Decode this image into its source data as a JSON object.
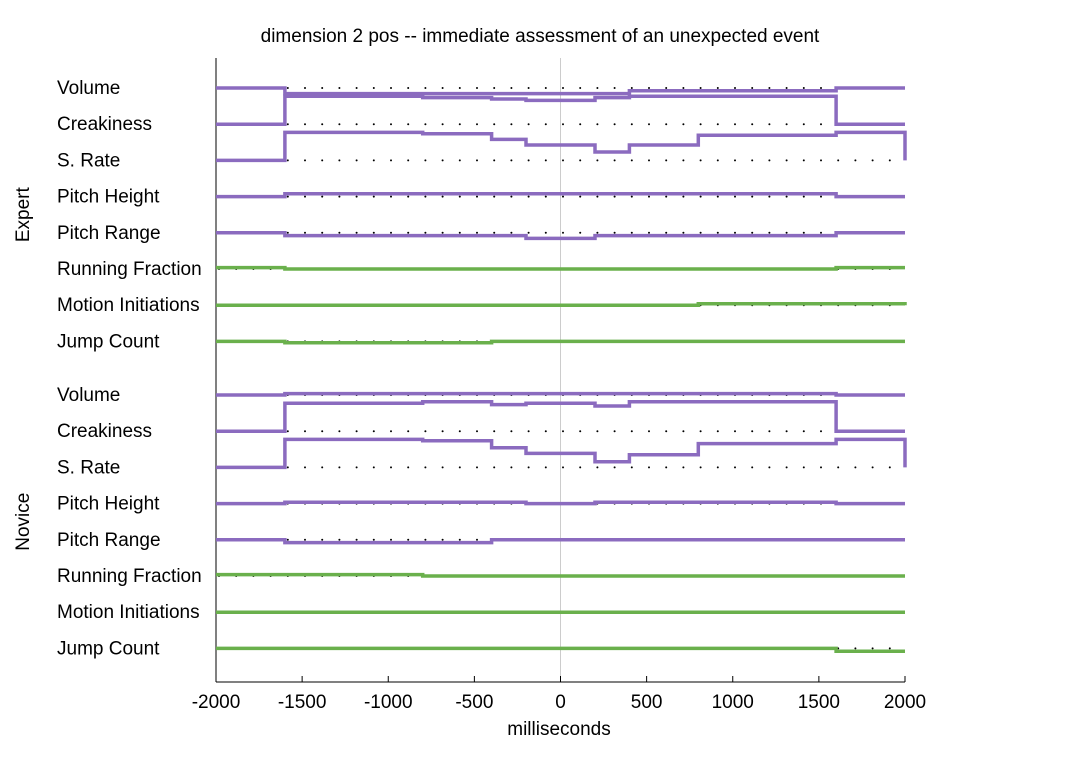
{
  "chart_data": {
    "type": "line",
    "title": "dimension 2 pos -- immediate assessment of an unexpected event",
    "xlabel": "milliseconds",
    "xlim": [
      -2000,
      2000
    ],
    "xticks": [
      -2000,
      -1500,
      -1000,
      -500,
      0,
      500,
      1000,
      1500,
      2000
    ],
    "xtick_labels": [
      "-2000",
      "-1500",
      "-1000",
      "-500",
      "0",
      "500",
      "1000",
      "1500",
      "2000"
    ],
    "segment_edges": [
      -2000,
      -1600,
      -800,
      -400,
      -200,
      200,
      400,
      800,
      1600,
      2000
    ],
    "zero_line": 0,
    "colors": {
      "prosodic": "#8b6bbf",
      "motion": "#6ab04c",
      "baseline_dots": "#000000",
      "zero_line": "#cccccc",
      "axis": "#000000"
    },
    "groups": [
      {
        "name": "Expert",
        "series": [
          {
            "name": "Volume",
            "kind": "prosodic",
            "values": [
              0,
              -0.2,
              -0.2,
              -0.2,
              -0.2,
              -0.2,
              -0.1,
              -0.1,
              0,
              0
            ]
          },
          {
            "name": "Creakiness",
            "kind": "prosodic",
            "values": [
              0,
              1.0,
              0.95,
              0.9,
              0.85,
              0.95,
              1.0,
              1.0,
              0,
              0
            ]
          },
          {
            "name": "S. Rate",
            "kind": "prosodic",
            "values": [
              0,
              1.0,
              0.95,
              0.75,
              0.55,
              0.3,
              0.55,
              0.9,
              1.0,
              0
            ]
          },
          {
            "name": "Pitch Height",
            "kind": "prosodic",
            "values": [
              0,
              0.1,
              0.1,
              0.1,
              0.1,
              0.1,
              0.1,
              0.1,
              0,
              0
            ]
          },
          {
            "name": "Pitch Range",
            "kind": "prosodic",
            "values": [
              0,
              -0.1,
              -0.1,
              -0.1,
              -0.2,
              -0.1,
              -0.1,
              -0.1,
              0,
              0
            ]
          },
          {
            "name": "Running Fraction",
            "kind": "motion",
            "values": [
              0.05,
              0,
              0,
              0,
              0,
              0,
              0,
              0,
              0.05,
              0.05
            ]
          },
          {
            "name": "Motion Initiations",
            "kind": "motion",
            "values": [
              0,
              0,
              0,
              0,
              0,
              0,
              0,
              0.05,
              0.05,
              0
            ]
          },
          {
            "name": "Jump Count",
            "kind": "motion",
            "values": [
              0,
              -0.05,
              -0.05,
              0,
              0,
              0,
              0,
              0,
              0,
              0
            ]
          }
        ]
      },
      {
        "name": "Novice",
        "series": [
          {
            "name": "Volume",
            "kind": "prosodic",
            "values": [
              0,
              0.05,
              0.05,
              0.05,
              0.05,
              0.05,
              0.05,
              0.05,
              0,
              0
            ]
          },
          {
            "name": "Creakiness",
            "kind": "prosodic",
            "values": [
              0,
              1.0,
              1.05,
              0.95,
              1.0,
              0.9,
              1.05,
              1.05,
              0,
              0
            ]
          },
          {
            "name": "S. Rate",
            "kind": "prosodic",
            "values": [
              0,
              1.0,
              0.95,
              0.7,
              0.5,
              0.2,
              0.45,
              0.85,
              1.0,
              0
            ]
          },
          {
            "name": "Pitch Height",
            "kind": "prosodic",
            "values": [
              0,
              0.05,
              0.05,
              0.05,
              0,
              0.05,
              0.05,
              0.05,
              0,
              0
            ]
          },
          {
            "name": "Pitch Range",
            "kind": "prosodic",
            "values": [
              0,
              -0.1,
              -0.1,
              0,
              0,
              0,
              0,
              0,
              0,
              0
            ]
          },
          {
            "name": "Running Fraction",
            "kind": "motion",
            "values": [
              0.05,
              0.05,
              0,
              0,
              0,
              0,
              0,
              0,
              0,
              0
            ]
          },
          {
            "name": "Motion Initiations",
            "kind": "motion",
            "values": [
              0,
              0,
              0,
              0,
              0,
              0,
              0,
              0,
              0,
              0
            ]
          },
          {
            "name": "Jump Count",
            "kind": "motion",
            "values": [
              0,
              0,
              0,
              0,
              0,
              0,
              0,
              0,
              -0.1,
              -0.1
            ]
          }
        ]
      }
    ]
  }
}
